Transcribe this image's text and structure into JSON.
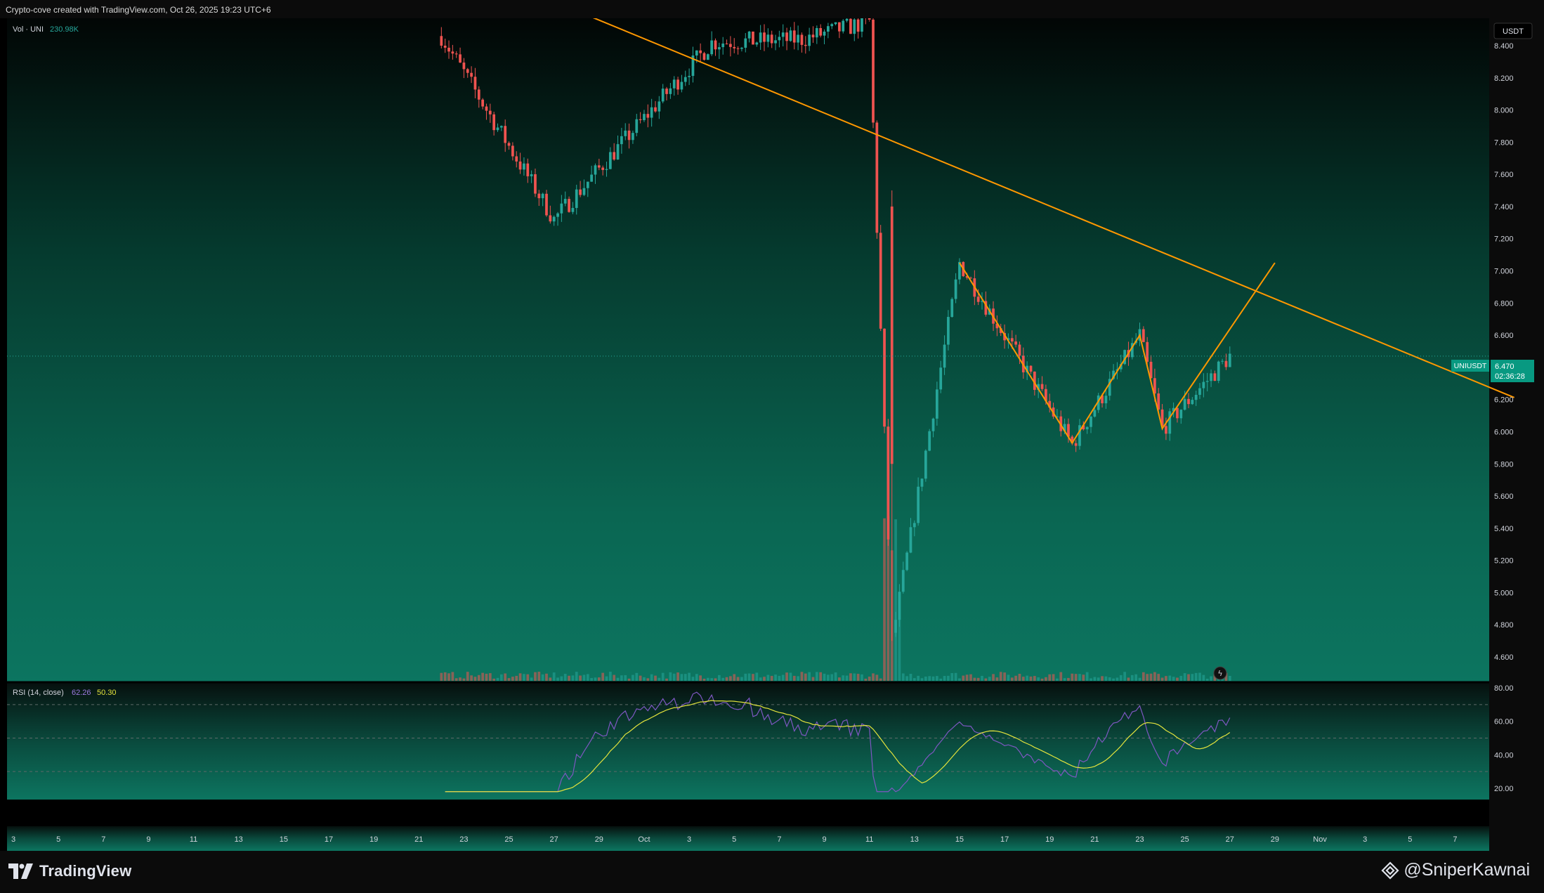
{
  "header": {
    "credit": "Crypto-cove created with TradingView.com, Oct 26, 2025 19:23 UTC+6"
  },
  "volume_legend": {
    "name": "Vol · UNI",
    "value": "230.98K"
  },
  "price_axis": {
    "currency": "USDT",
    "ticks": [
      "8.400",
      "8.200",
      "8.000",
      "7.800",
      "7.600",
      "7.400",
      "7.200",
      "7.000",
      "6.800",
      "6.600",
      "6.400",
      "6.200",
      "6.000",
      "5.800",
      "5.600",
      "5.400",
      "5.200",
      "5.000",
      "4.800",
      "4.600"
    ],
    "symbol_tag": "UNIUSDT",
    "last_price": "6.470",
    "countdown": "02:36:28"
  },
  "rsi": {
    "label": "RSI (14, close)",
    "value": "62.26",
    "ma_value": "50.30",
    "ticks": [
      "80.00",
      "60.00",
      "40.00",
      "20.00"
    ]
  },
  "time_axis": {
    "labels": [
      "3",
      "5",
      "7",
      "9",
      "11",
      "13",
      "15",
      "17",
      "19",
      "21",
      "23",
      "25",
      "27",
      "29",
      "Oct",
      "3",
      "5",
      "7",
      "9",
      "11",
      "13",
      "15",
      "17",
      "19",
      "21",
      "23",
      "25",
      "27",
      "29",
      "Nov",
      "3",
      "5",
      "7"
    ]
  },
  "footer": {
    "brand": "TradingView",
    "watermark": "@SniperKawnai"
  },
  "colors": {
    "up": "#26a69a",
    "down": "#ef5350",
    "drawing": "#ff9800",
    "rsi_line": "#7e57c2",
    "rsi_ma": "#e3e33c",
    "last_price_bg": "#089981"
  },
  "chart_data": {
    "type": "candlestick",
    "symbol": "UNIUSDT",
    "timeframe": "4h",
    "ylim": [
      4.5,
      8.6
    ],
    "grid": false,
    "key_points": [
      {
        "time": "Sep 21",
        "price": 8.46,
        "note": "series start high"
      },
      {
        "time": "Sep 26",
        "price": 7.32,
        "note": "local low"
      },
      {
        "time": "Oct 3",
        "price": 8.42,
        "note": "local high"
      },
      {
        "time": "Oct 7",
        "price": 8.44,
        "note": "local high"
      },
      {
        "time": "Oct 10",
        "price": 8.55,
        "note": "wick high"
      },
      {
        "time": "Oct 11",
        "price": 4.7,
        "note": "crash low"
      },
      {
        "time": "Oct 14",
        "price": 7.05,
        "note": "rebound high"
      },
      {
        "time": "Oct 19",
        "price": 5.92,
        "note": "pattern low"
      },
      {
        "time": "Oct 22",
        "price": 6.6,
        "note": "pattern high"
      },
      {
        "time": "Oct 23",
        "price": 6.02,
        "note": "pattern low"
      },
      {
        "time": "Oct 26",
        "price": 6.47,
        "note": "last close"
      }
    ],
    "trendline": [
      {
        "time": "Sep 25",
        "price": 8.75
      },
      {
        "time": "Nov 7",
        "price": 6.3
      }
    ],
    "pattern": [
      {
        "time": "Oct 14",
        "price": 7.05
      },
      {
        "time": "Oct 19",
        "price": 5.93
      },
      {
        "time": "Oct 22",
        "price": 6.6
      },
      {
        "time": "Oct 23",
        "price": 6.02
      },
      {
        "time": "Oct 28",
        "price": 7.05
      }
    ],
    "rsi_ylim": [
      10,
      85
    ],
    "rsi_bands": [
      70,
      50,
      30
    ]
  }
}
